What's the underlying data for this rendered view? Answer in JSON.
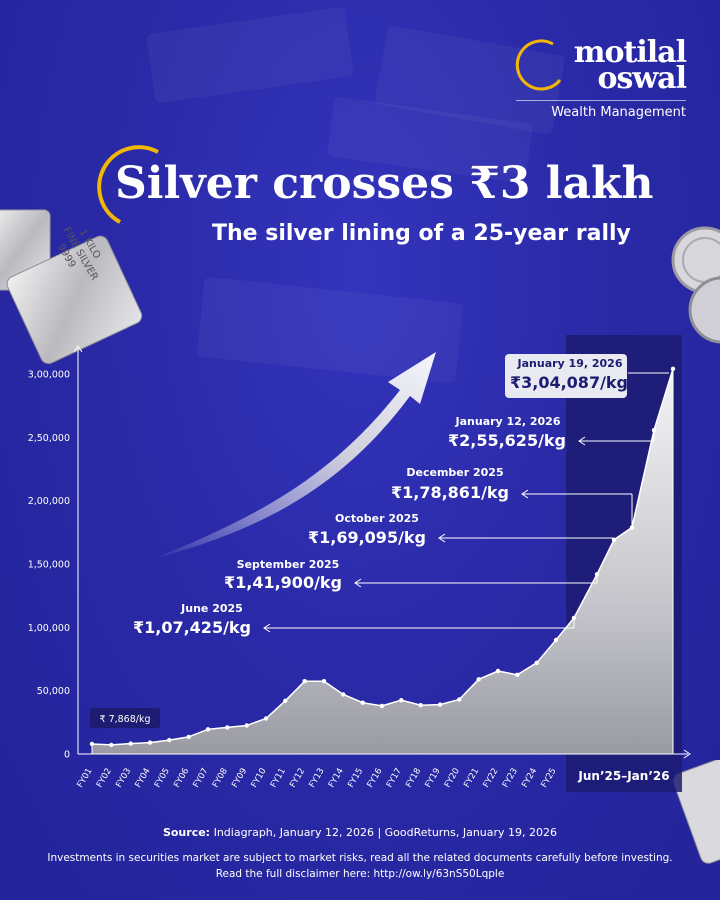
{
  "logo": {
    "line1": "motilal",
    "line2": "oswal",
    "tagline": "Wealth Management"
  },
  "title": "Silver crosses ₹3 lakh",
  "subtitle": "The silver lining of a 25-year rally",
  "deco_bar_text": {
    "line1": "1 KILO",
    "line2": "FINE SILVER",
    "line3": "9999"
  },
  "colors": {
    "background": "#2a2aa8",
    "accent": "#f2b705",
    "highlight_band": "#1a1a6e",
    "text": "#ffffff"
  },
  "chart_data": {
    "type": "area",
    "categories": [
      "FY01",
      "FY02",
      "FY03",
      "FY04",
      "FY05",
      "FY06",
      "FY07",
      "FY08",
      "FY09",
      "FY10",
      "FY11",
      "FY12",
      "FY13",
      "FY14",
      "FY15",
      "FY16",
      "FY17",
      "FY18",
      "FY19",
      "FY20",
      "FY21",
      "FY22",
      "FY23",
      "FY24",
      "FY25"
    ],
    "values": [
      7868,
      7200,
      8200,
      9000,
      11000,
      13500,
      19500,
      21000,
      22500,
      28000,
      42000,
      57500,
      57500,
      47000,
      40500,
      38000,
      42500,
      38500,
      39000,
      43000,
      59000,
      65500,
      62500,
      72000,
      90000
    ],
    "extension": {
      "label": "Jun’25–Jan’26",
      "points": [
        {
          "date": "June 2025",
          "value": 107425
        },
        {
          "date": "September 2025",
          "value": 141900
        },
        {
          "date": "October 2025",
          "value": 169095
        },
        {
          "date": "December 2025",
          "value": 178861
        },
        {
          "date": "January 12, 2026",
          "value": 255625
        },
        {
          "date": "January 19, 2026",
          "value": 304087
        }
      ]
    },
    "annotations": [
      {
        "date": "January 19, 2026",
        "value_text": "₹3,04,087/kg",
        "highlight": true
      },
      {
        "date": "January 12, 2026",
        "value_text": "₹2,55,625/kg"
      },
      {
        "date": "December 2025",
        "value_text": "₹1,78,861/kg"
      },
      {
        "date": "October 2025",
        "value_text": "₹1,69,095/kg"
      },
      {
        "date": "September 2025",
        "value_text": "₹1,41,900/kg"
      },
      {
        "date": "June 2025",
        "value_text": "₹1,07,425/kg"
      }
    ],
    "start_label": "₹ 7,868/kg",
    "yticks": [
      "0",
      "50,000",
      "1,00,000",
      "1,50,000",
      "2,00,000",
      "2,50,000",
      "3,00,000"
    ],
    "ytick_values": [
      0,
      50000,
      100000,
      150000,
      200000,
      250000,
      300000
    ],
    "ylim": [
      0,
      320000
    ],
    "grid": false
  },
  "footer": {
    "source_label": "Source:",
    "source_text": " Indiagraph, January 12, 2026  |  GoodReturns, January 19, 2026",
    "disclaimer_line1": "Investments in securities market are subject to market risks, read all the related documents carefully before investing.",
    "disclaimer_line2": "Read the full disclaimer here: http://ow.ly/63nS50Lqple"
  }
}
